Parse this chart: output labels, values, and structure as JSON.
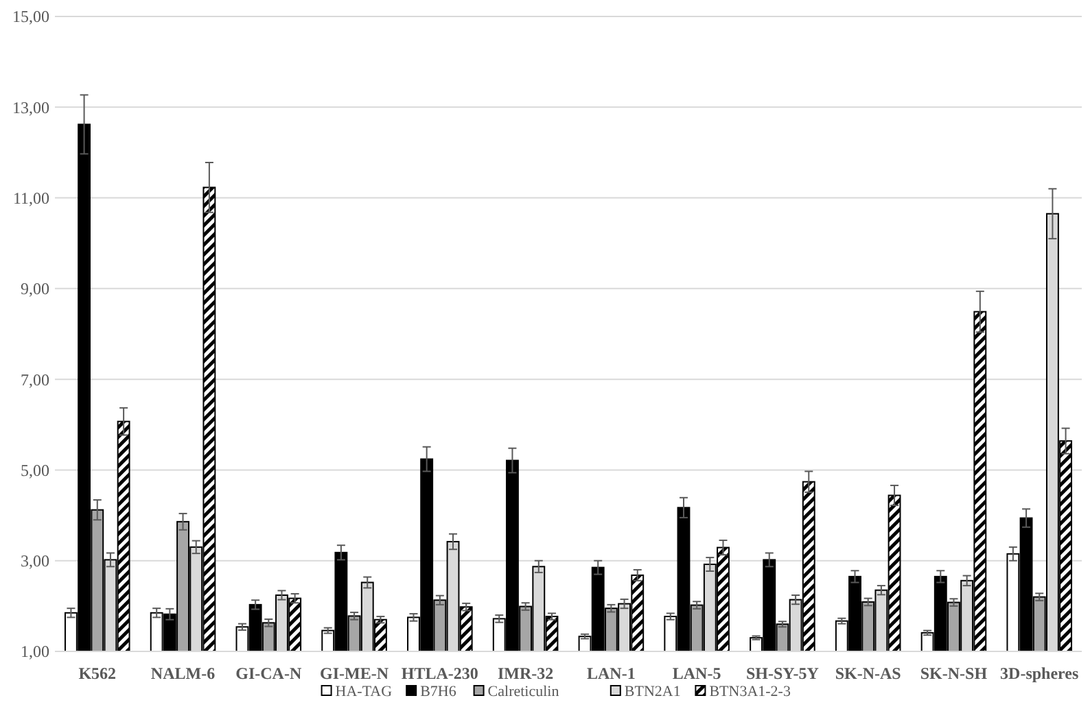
{
  "chart_data": {
    "type": "bar",
    "categories": [
      "K562",
      "NALM-6",
      "GI-CA-N",
      "GI-ME-N",
      "HTLA-230",
      "IMR-32",
      "LAN-1",
      "LAN-5",
      "SH-SY-5Y",
      "SK-N-AS",
      "SK-N-SH",
      "3D-spheres"
    ],
    "series": [
      {
        "name": "HA-TAG",
        "color": "#ffffff",
        "values": [
          1.85,
          1.85,
          1.54,
          1.46,
          1.75,
          1.72,
          1.33,
          1.77,
          1.3,
          1.67,
          1.41,
          3.15
        ],
        "errors": [
          0.1,
          0.1,
          0.07,
          0.06,
          0.08,
          0.08,
          0.05,
          0.07,
          0.04,
          0.06,
          0.05,
          0.15
        ]
      },
      {
        "name": "B7H6",
        "color": "#000000",
        "values": [
          12.62,
          1.82,
          2.03,
          3.18,
          5.24,
          5.21,
          2.85,
          4.17,
          3.02,
          2.65,
          2.65,
          3.94
        ],
        "errors": [
          0.65,
          0.12,
          0.1,
          0.16,
          0.27,
          0.27,
          0.15,
          0.22,
          0.15,
          0.13,
          0.13,
          0.2
        ]
      },
      {
        "name": "Calreticulin",
        "color": "#a6a6a6",
        "values": [
          4.12,
          3.86,
          1.63,
          1.78,
          2.13,
          1.99,
          1.95,
          2.02,
          1.6,
          2.09,
          2.08,
          2.2
        ],
        "errors": [
          0.22,
          0.18,
          0.08,
          0.08,
          0.1,
          0.08,
          0.08,
          0.08,
          0.06,
          0.08,
          0.08,
          0.08
        ]
      },
      {
        "name": "BTN2A1",
        "color": "#d9d9d9",
        "values": [
          3.02,
          3.3,
          2.24,
          2.52,
          3.42,
          2.87,
          2.05,
          2.92,
          2.14,
          2.35,
          2.56,
          10.65
        ],
        "errors": [
          0.15,
          0.14,
          0.1,
          0.12,
          0.17,
          0.13,
          0.1,
          0.15,
          0.1,
          0.1,
          0.11,
          0.55
        ]
      },
      {
        "name": "BTN3A1-2-3",
        "color": "#000000",
        "values": [
          6.07,
          11.23,
          2.17,
          1.7,
          1.98,
          1.77,
          2.68,
          3.29,
          4.74,
          4.44,
          8.49,
          5.64
        ],
        "errors": [
          0.3,
          0.55,
          0.1,
          0.07,
          0.08,
          0.07,
          0.12,
          0.16,
          0.23,
          0.22,
          0.45,
          0.28
        ]
      }
    ],
    "ylim": [
      1,
      15
    ],
    "yticks": [
      {
        "value": 1,
        "label": "1,00"
      },
      {
        "value": 3,
        "label": "3,00"
      },
      {
        "value": 5,
        "label": "5,00"
      },
      {
        "value": 7,
        "label": "7,00"
      },
      {
        "value": 9,
        "label": "9,00"
      },
      {
        "value": 11,
        "label": "11,00"
      },
      {
        "value": 13,
        "label": "13,00"
      },
      {
        "value": 15,
        "label": "15,00"
      }
    ],
    "grid": "y",
    "legend": "bottom"
  }
}
